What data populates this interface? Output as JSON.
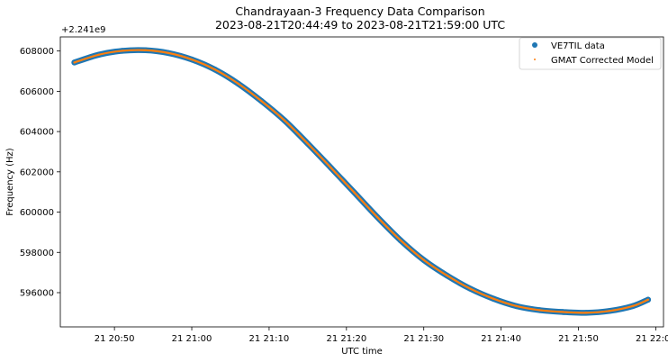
{
  "chart_data": {
    "type": "scatter",
    "title": "Chandrayaan-3 Frequency Data Comparison",
    "subtitle": "2023-08-21T20:44:49 to 2023-08-21T21:59:00 UTC",
    "xlabel": "UTC time",
    "ylabel": "Frequency (Hz)",
    "y_offset_label": "+2.241e9",
    "x_tick_labels": [
      "21 20:50",
      "21 21:00",
      "21 21:10",
      "21 21:20",
      "21 21:30",
      "21 21:40",
      "21 21:50",
      "21 22:00"
    ],
    "x_ticks": [
      "2023-08-21T20:50:00",
      "2023-08-21T21:00:00",
      "2023-08-21T21:10:00",
      "2023-08-21T21:20:00",
      "2023-08-21T21:30:00",
      "2023-08-21T21:40:00",
      "2023-08-21T21:50:00",
      "2023-08-21T22:00:00"
    ],
    "y_tick_labels": [
      "596000",
      "598000",
      "600000",
      "602000",
      "604000",
      "606000",
      "608000"
    ],
    "y_ticks": [
      596000,
      598000,
      600000,
      602000,
      604000,
      606000,
      608000
    ],
    "xlim": [
      "2023-08-21T20:43:00",
      "2023-08-21T22:01:00"
    ],
    "ylim": [
      594300,
      608700
    ],
    "grid": false,
    "legend_position": "top-right",
    "series": [
      {
        "name": "VE7TIL data",
        "color": "#1f77b4",
        "marker": "circle",
        "x": [
          "2023-08-21T20:44:49",
          "2023-08-21T20:48:00",
          "2023-08-21T20:51:00",
          "2023-08-21T20:54:00",
          "2023-08-21T20:57:00",
          "2023-08-21T21:00:00",
          "2023-08-21T21:03:00",
          "2023-08-21T21:06:00",
          "2023-08-21T21:09:00",
          "2023-08-21T21:12:00",
          "2023-08-21T21:15:00",
          "2023-08-21T21:18:00",
          "2023-08-21T21:21:00",
          "2023-08-21T21:24:00",
          "2023-08-21T21:27:00",
          "2023-08-21T21:30:00",
          "2023-08-21T21:33:00",
          "2023-08-21T21:36:00",
          "2023-08-21T21:39:00",
          "2023-08-21T21:42:00",
          "2023-08-21T21:45:00",
          "2023-08-21T21:48:00",
          "2023-08-21T21:51:00",
          "2023-08-21T21:54:00",
          "2023-08-21T21:57:00",
          "2023-08-21T21:59:00"
        ],
        "y": [
          607430,
          607820,
          608010,
          608040,
          607900,
          607580,
          607080,
          606380,
          605520,
          604550,
          603400,
          602200,
          600980,
          599750,
          598600,
          597620,
          596850,
          596200,
          595700,
          595330,
          595130,
          595040,
          595000,
          595090,
          595330,
          595650
        ]
      },
      {
        "name": "GMAT Corrected Model",
        "color": "#ff7f0e",
        "marker": "point",
        "x": [
          "2023-08-21T20:44:49",
          "2023-08-21T20:48:00",
          "2023-08-21T20:51:00",
          "2023-08-21T20:54:00",
          "2023-08-21T20:57:00",
          "2023-08-21T21:00:00",
          "2023-08-21T21:03:00",
          "2023-08-21T21:06:00",
          "2023-08-21T21:09:00",
          "2023-08-21T21:12:00",
          "2023-08-21T21:15:00",
          "2023-08-21T21:18:00",
          "2023-08-21T21:21:00",
          "2023-08-21T21:24:00",
          "2023-08-21T21:27:00",
          "2023-08-21T21:30:00",
          "2023-08-21T21:33:00",
          "2023-08-21T21:36:00",
          "2023-08-21T21:39:00",
          "2023-08-21T21:42:00",
          "2023-08-21T21:45:00",
          "2023-08-21T21:48:00",
          "2023-08-21T21:51:00",
          "2023-08-21T21:54:00",
          "2023-08-21T21:57:00",
          "2023-08-21T21:59:00"
        ],
        "y": [
          607430,
          607820,
          608010,
          608040,
          607900,
          607580,
          607080,
          606380,
          605520,
          604550,
          603400,
          602200,
          600980,
          599750,
          598600,
          597620,
          596850,
          596200,
          595700,
          595330,
          595130,
          595040,
          595000,
          595090,
          595330,
          595650
        ]
      }
    ]
  }
}
